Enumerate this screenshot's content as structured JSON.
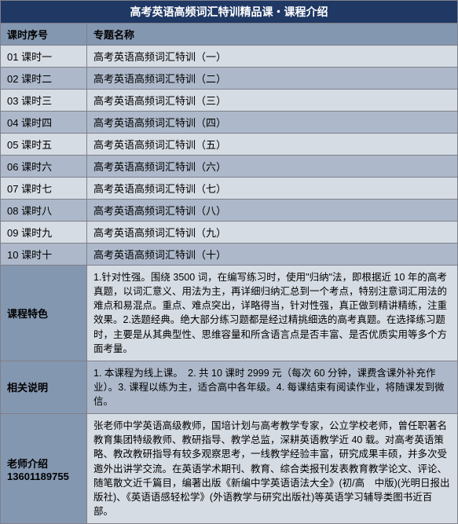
{
  "header": {
    "title": "高考英语高频词汇特训精品课・课程介绍"
  },
  "columns": {
    "num": "课时序号",
    "topic": "专题名称"
  },
  "rows": [
    {
      "num": "01 课时一",
      "topic": "高考英语高频词汇特训（一）"
    },
    {
      "num": "02 课时二",
      "topic": "高考英语高频词汇特训（二）"
    },
    {
      "num": "03 课时三",
      "topic": "高考英语高频词汇特训（三）"
    },
    {
      "num": "04 课时四",
      "topic": "高考英语高频词汇特训（四）"
    },
    {
      "num": "05 课时五",
      "topic": "高考英语高频词汇特训（五）"
    },
    {
      "num": "06 课时六",
      "topic": "高考英语高频词汇特训（六）"
    },
    {
      "num": "07 课时七",
      "topic": "高考英语高频词汇特训（七）"
    },
    {
      "num": "08 课时八",
      "topic": "高考英语高频词汇特训（八）"
    },
    {
      "num": "09 课时九",
      "topic": "高考英语高频词汇特训（九）"
    },
    {
      "num": "10 课时十",
      "topic": "高考英语高频词汇特训（十）"
    }
  ],
  "features": {
    "label": "课程特色",
    "body": "1.针对性强。围绕 3500 词，在编写练习时，使用\"归纳\"法，即根据近 10 年的高考真题，以词汇意义、用法为主，再详细归纳汇总到一个考点，特别注意词汇用法的难点和易混点。重点、难点突出，详略得当，针对性强，真正做到精讲精练，注重效果。2.选题经典。绝大部分练习题都是经过精挑细选的高考真题。在选择练习题时，主要是从其典型性、思维容量和所含语言点是否丰富、是否优质实用等多个方面考量。"
  },
  "notes": {
    "label": "相关说明",
    "body": "1. 本课程为线上课。　2. 共 10 课时 2999 元（每次 60 分钟，课费含课外补充作业）。3. 课程以练为主，适合高中各年级。4. 每课结束有阅读作业，将随课发到微信。"
  },
  "teacher": {
    "label_line1": "老师介绍",
    "label_line2": "13601189755",
    "body": "张老师中学英语高级教师，国培计划与高考教学专家，公立学校老师，曾任职著名教育集团特级教师、教研指导、教学总监，深耕英语教学近 40 载。对高考英语策略、教改教研指导有较多观察思考，一线教学经验丰富，研究成果丰硕，并多次受邀外出讲学交流。在英语学术期刊、教育、综合类报刊发表教育教学论文、评论、随笔散文近千篇目，编著出版《新编中学英语语法大全》(初/高　中版)(光明日报出版社)、《英语语感轻松学》(外语教学与研究出版社)等英语学习辅导类图书近百部。"
  }
}
